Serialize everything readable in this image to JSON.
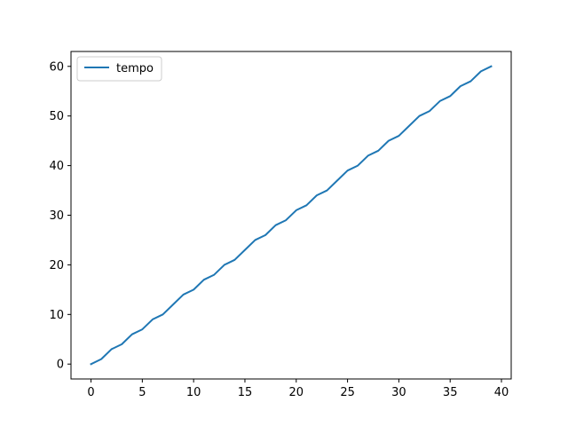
{
  "chart_data": {
    "type": "line",
    "title": "",
    "xlabel": "",
    "ylabel": "",
    "xlim": [
      -1.95,
      40.95
    ],
    "ylim": [
      -3,
      63
    ],
    "xticks": [
      0,
      5,
      10,
      15,
      20,
      25,
      30,
      35,
      40
    ],
    "yticks": [
      0,
      10,
      20,
      30,
      40,
      50,
      60
    ],
    "x_tick_labels": [
      "0",
      "5",
      "10",
      "15",
      "20",
      "25",
      "30",
      "35",
      "40"
    ],
    "y_tick_labels": [
      "0",
      "10",
      "20",
      "30",
      "40",
      "50",
      "60"
    ],
    "grid": false,
    "legend": {
      "placement": "upper-left",
      "entries": [
        "tempo"
      ]
    },
    "series": [
      {
        "name": "tempo",
        "color": "#1f77b4",
        "x": [
          0,
          1,
          2,
          3,
          4,
          5,
          6,
          7,
          8,
          9,
          10,
          11,
          12,
          13,
          14,
          15,
          16,
          17,
          18,
          19,
          20,
          21,
          22,
          23,
          24,
          25,
          26,
          27,
          28,
          29,
          30,
          31,
          32,
          33,
          34,
          35,
          36,
          37,
          38,
          39
        ],
        "y": [
          0,
          1,
          3,
          4,
          6,
          7,
          9,
          10,
          12,
          14,
          15,
          17,
          18,
          20,
          21,
          23,
          25,
          26,
          28,
          29,
          31,
          32,
          34,
          35,
          37,
          39,
          40,
          42,
          43,
          45,
          46,
          48,
          50,
          51,
          53,
          54,
          56,
          57,
          59,
          60
        ]
      }
    ]
  }
}
